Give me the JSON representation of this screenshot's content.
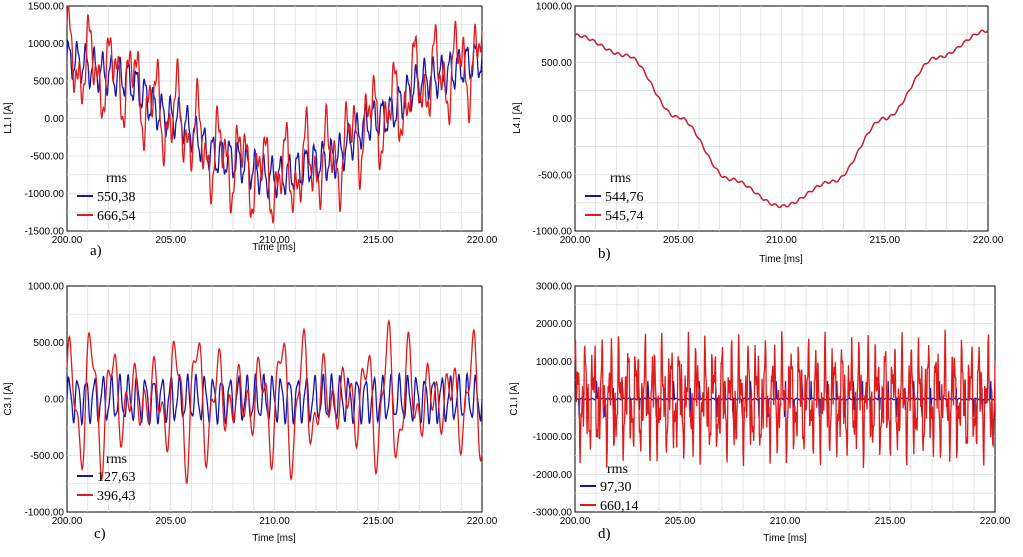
{
  "colors": {
    "series1": "#1515a8",
    "series2": "#e01b1b",
    "grid": "#d9d9d9",
    "frame": "#000000"
  },
  "chart_data": [
    {
      "type": "line",
      "panel_label": "a)",
      "ylabel": "L1.I [A]",
      "xlabel": "Time [ms]",
      "xlim": [
        200,
        220
      ],
      "ylim": [
        -1500,
        1500
      ],
      "xticks": [
        "200.00",
        "205.00",
        "210.00",
        "215.00",
        "220.00"
      ],
      "yticks": [
        "1500.00",
        "1000.00",
        "500.00",
        "0.00",
        "-500.00",
        "-1000.00",
        "-1500.00"
      ],
      "grid": true,
      "legend_title": "rms",
      "series": [
        {
          "name": "550,38",
          "x": [
            200,
            202.5,
            205,
            207.5,
            210,
            212.5,
            215,
            217.5,
            220
          ],
          "y": [
            780,
            560,
            20,
            -520,
            -780,
            -560,
            0,
            540,
            780
          ]
        },
        {
          "name": "666,54",
          "x": [
            200,
            202.5,
            205,
            207.5,
            210,
            212.5,
            215,
            217.5,
            220
          ],
          "y": [
            780,
            560,
            20,
            -520,
            -780,
            -560,
            0,
            540,
            780
          ]
        }
      ]
    },
    {
      "type": "line",
      "panel_label": "b)",
      "ylabel": "L4.I [A]",
      "xlabel": "Time [ms]",
      "xlim": [
        200,
        220
      ],
      "ylim": [
        -1000,
        1000
      ],
      "xticks": [
        "200.00",
        "205.00",
        "210.00",
        "215.00",
        "220.00"
      ],
      "yticks": [
        "1000.00",
        "500.00",
        "0.00",
        "-500.00",
        "-1000.00"
      ],
      "grid": true,
      "legend_title": "rms",
      "series": [
        {
          "name": "544,76",
          "x": [
            200,
            202.5,
            205,
            207.5,
            210,
            212.5,
            215,
            217.5,
            220
          ],
          "y": [
            740,
            560,
            10,
            -540,
            -780,
            -560,
            0,
            540,
            780
          ]
        },
        {
          "name": "545,74",
          "x": [
            200,
            202.5,
            205,
            207.5,
            210,
            212.5,
            215,
            217.5,
            220
          ],
          "y": [
            740,
            560,
            10,
            -540,
            -780,
            -560,
            0,
            540,
            780
          ]
        }
      ]
    },
    {
      "type": "line",
      "panel_label": "c)",
      "ylabel": "C3.I [A]",
      "xlabel": "Time [ms]",
      "xlim": [
        200,
        220
      ],
      "ylim": [
        -1000,
        1000
      ],
      "xticks": [
        "200.00",
        "205.00",
        "210.00",
        "215.00",
        "220.00"
      ],
      "yticks": [
        "1000.00",
        "500.00",
        "0.00",
        "-500.00",
        "-1000.00"
      ],
      "grid": true,
      "legend_title": "rms",
      "series": [
        {
          "name": "127,63",
          "amplitude": 180
        },
        {
          "name": "396,43",
          "amplitude": 560
        }
      ]
    },
    {
      "type": "line",
      "panel_label": "d)",
      "ylabel": "C1.I [A]",
      "xlabel": "Time [ms]",
      "xlim": [
        200,
        220
      ],
      "ylim": [
        -3000,
        3000
      ],
      "xticks": [
        "200.00",
        "205.00",
        "210.00",
        "215.00",
        "220.00"
      ],
      "yticks": [
        "3000.00",
        "2000.00",
        "1000.00",
        "0.00",
        "-1000.00",
        "-2000.00",
        "-3000.00"
      ],
      "grid": true,
      "legend_title": "rms",
      "series": [
        {
          "name": "97,30",
          "amplitude": 500
        },
        {
          "name": "660,14",
          "amplitude": 1800
        }
      ]
    }
  ]
}
